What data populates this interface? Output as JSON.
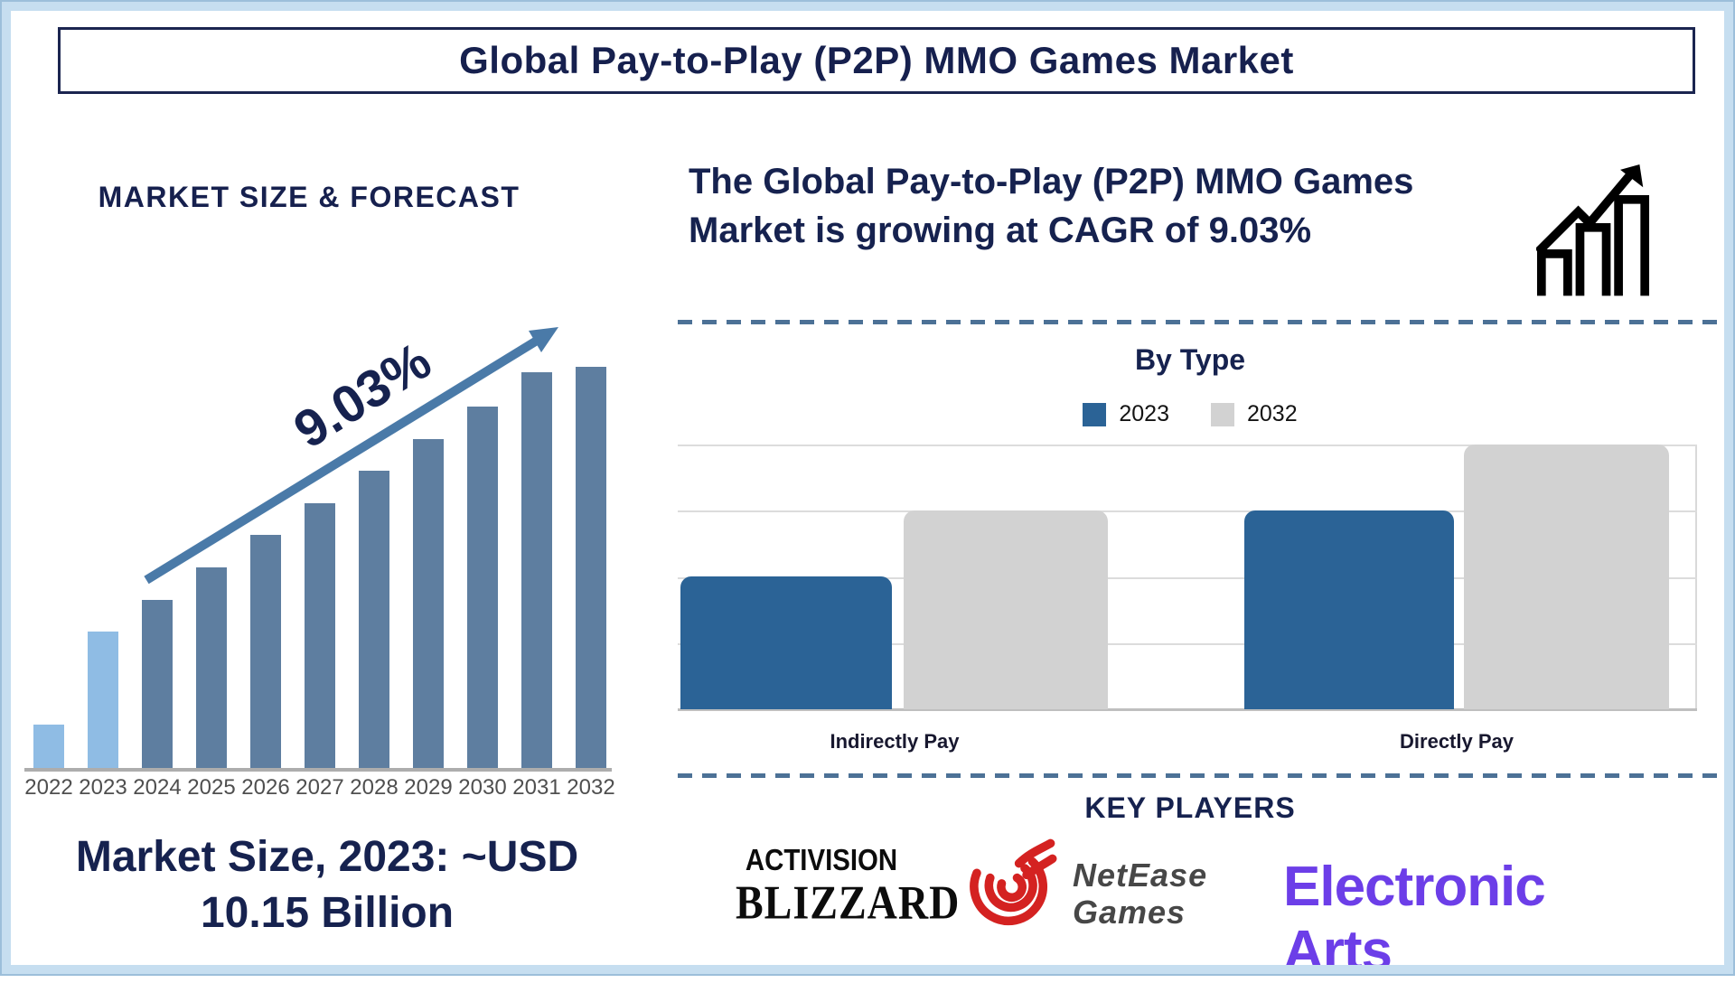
{
  "title": "Global Pay-to-Play (P2P) MMO Games Market",
  "left_panel": {
    "section_title": "MARKET SIZE & FORECAST",
    "cagr_label": "9.03%",
    "market_size_lines": [
      "Market Size, 2023: ~USD",
      "10.15 Billion"
    ]
  },
  "right_panel": {
    "headline_lines": [
      "The Global Pay-to-Play (P2P) MMO Games",
      "Market is growing at CAGR of 9.03%"
    ],
    "by_type_title": "By Type",
    "key_players_title": "KEY PLAYERS",
    "key_players": [
      {
        "name": "Activision Blizzard",
        "logo_lines": [
          "ACTIVISION",
          "BLIZZARD"
        ],
        "color": "#0C0C0C"
      },
      {
        "name": "NetEase Games",
        "logo_lines": [
          "NetEase",
          "Games"
        ],
        "icon": "netease-flame-icon",
        "icon_color": "#D42221",
        "text_color": "#474747"
      },
      {
        "name": "Electronic Arts",
        "logo_text": "Electronic Arts",
        "color": "#6C3EE8"
      }
    ]
  },
  "colors": {
    "navy_text": "#16224F",
    "historical_bar": "#8FBCE4",
    "forecast_bar": "#5E7EA0",
    "trend_arrow": "#4A7AA8",
    "dashed_line": "#4C7196",
    "page_border": "#C6DEF0",
    "axis_gray": "#ADADAD"
  },
  "chart_data": [
    {
      "id": "market_size_forecast",
      "type": "bar",
      "title": "MARKET SIZE & FORECAST",
      "categories": [
        "2022",
        "2023",
        "2024",
        "2025",
        "2026",
        "2027",
        "2028",
        "2029",
        "2030",
        "2031",
        "2032"
      ],
      "values": [
        10.8,
        34,
        42,
        50,
        58,
        66,
        74,
        82,
        90,
        98.6,
        100
      ],
      "value_axis": "unlabeled; values are relative bar heights in % of tallest (2032) bar",
      "highlight_categories": [
        "2022",
        "2023"
      ],
      "highlight_color": "#8FBCE4",
      "bar_color": "#5E7EA0",
      "grid": false,
      "legend": false,
      "annotations": [
        "9.03% CAGR arrow across bars",
        "Market Size, 2023: ~USD 10.15 Billion"
      ]
    },
    {
      "id": "by_type",
      "type": "bar",
      "title": "By Type",
      "categories": [
        "Indirectly Pay",
        "Directly Pay"
      ],
      "series": [
        {
          "name": "2023",
          "color": "#2B6396",
          "values": [
            2,
            3
          ]
        },
        {
          "name": "2032",
          "color": "#D2D2D2",
          "values": [
            3,
            4
          ]
        }
      ],
      "value_axis": "unlabeled; relative units estimated from gridlines",
      "ylim": [
        0,
        4
      ],
      "grid": true,
      "legend_position": "top"
    }
  ]
}
